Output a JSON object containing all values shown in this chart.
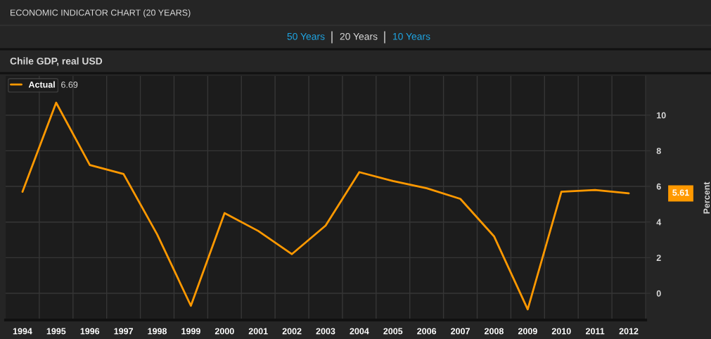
{
  "chart_data": {
    "type": "line",
    "title": "ECONOMIC INDICATOR CHART (20 YEARS)",
    "subtitle": "Chile GDP, real USD",
    "ylabel": "Percent",
    "categories": [
      "1994",
      "1995",
      "1996",
      "1997",
      "1998",
      "1999",
      "2000",
      "2001",
      "2002",
      "2003",
      "2004",
      "2005",
      "2006",
      "2007",
      "2008",
      "2009",
      "2010",
      "2011",
      "2012"
    ],
    "series": [
      {
        "name": "Actual",
        "color": "#ff9900",
        "values": [
          5.7,
          10.7,
          7.2,
          6.7,
          3.3,
          -0.7,
          4.5,
          3.5,
          2.2,
          3.8,
          6.8,
          6.3,
          5.9,
          5.3,
          3.2,
          -0.9,
          5.7,
          5.8,
          5.61
        ]
      }
    ],
    "ylim": [
      -1.5,
      12.2
    ],
    "yticks": [
      0,
      2,
      4,
      6,
      8,
      10
    ],
    "grid": true,
    "legend": "top left",
    "marker": "none",
    "line_style": "solid",
    "annotations": [
      "50 Years",
      "20 Years",
      "10 Years",
      "6.69",
      "5.61"
    ]
  }
}
